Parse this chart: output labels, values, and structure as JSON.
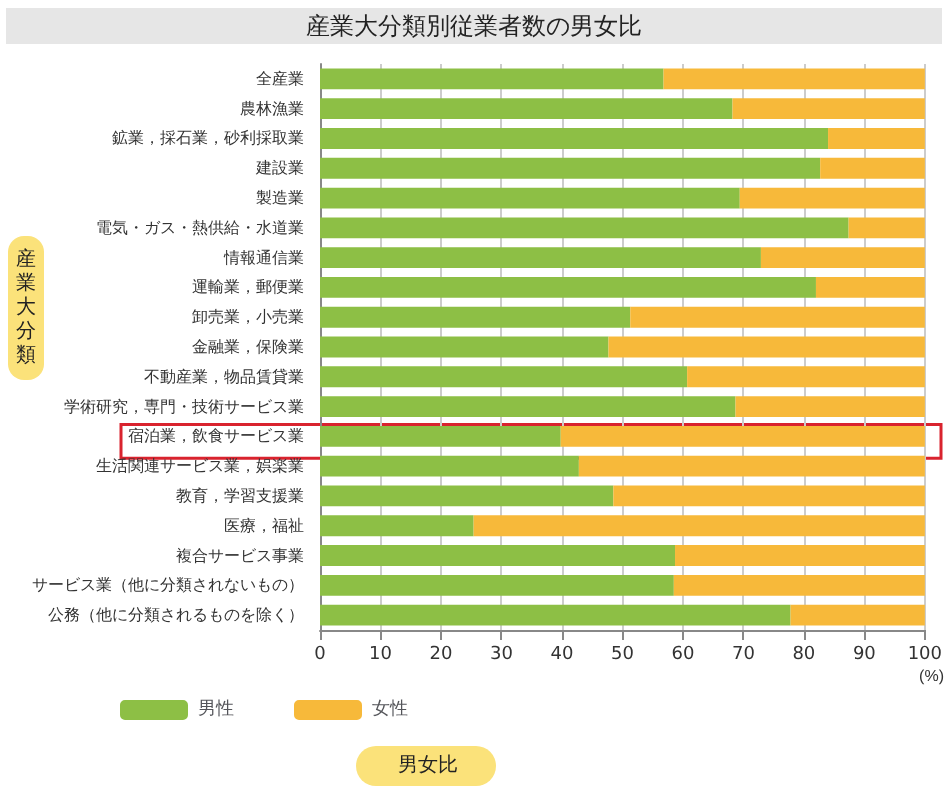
{
  "chart_data": {
    "type": "bar",
    "orientation": "horizontal",
    "stacked": true,
    "title": "産業大分類別従業者数の男女比",
    "ylabel": "産業大分類",
    "xlabel": "男女比",
    "annotations": [
      "(%)"
    ],
    "categories": [
      "全産業",
      "農林漁業",
      "鉱業，採石業，砂利採取業",
      "建設業",
      "製造業",
      "電気・ガス・熱供給・水道業",
      "情報通信業",
      "運輸業，郵便業",
      "卸売業，小売業",
      "金融業，保険業",
      "不動産業，物品賃貸業",
      "学術研究，専門・技術サービス業",
      "宿泊業，飲食サービス業",
      "生活関連サービス業，娯楽業",
      "教育，学習支援業",
      "医療，福祉",
      "複合サービス事業",
      "サービス業（他に分類されないもの）",
      "公務（他に分類されるものを除く）"
    ],
    "series": [
      {
        "name": "男性",
        "color": "#8dbf45",
        "values": [
          56.8,
          68.2,
          84.0,
          82.7,
          69.4,
          87.4,
          72.9,
          82.0,
          51.3,
          47.7,
          60.7,
          68.7,
          39.8,
          42.8,
          48.5,
          25.4,
          58.7,
          58.5,
          77.8
        ]
      },
      {
        "name": "女性",
        "color": "#f7b93a",
        "values": [
          43.2,
          31.8,
          16.0,
          17.3,
          30.6,
          12.6,
          27.1,
          18.0,
          48.7,
          52.3,
          39.3,
          31.3,
          60.2,
          57.2,
          51.5,
          74.6,
          41.3,
          41.5,
          22.2
        ]
      }
    ],
    "xlim": [
      0,
      100
    ],
    "xticks": [
      0,
      10,
      20,
      30,
      40,
      50,
      60,
      70,
      80,
      90,
      100
    ],
    "grid": "x",
    "legend": "bottom left"
  }
}
